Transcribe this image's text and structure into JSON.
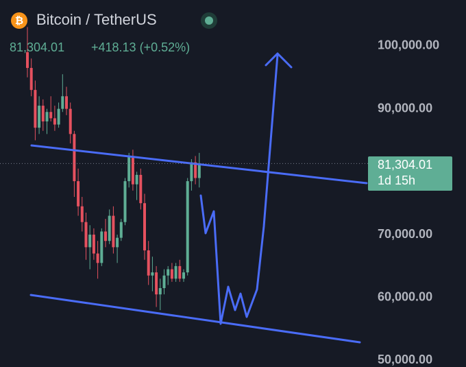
{
  "chart_data": {
    "type": "candlestick",
    "title": "Bitcoin / TetherUS",
    "price": "81,304.01",
    "change": "+418.13 (+0.52%)",
    "countdown": "1d 15h",
    "up_color": "#5fae95",
    "down_color": "#e5515f",
    "ylim": [
      48960,
      107300
    ],
    "yticks": [
      {
        "value": 50000,
        "label": "50,000.00"
      },
      {
        "value": 60000,
        "label": "60,000.00"
      },
      {
        "value": 70000,
        "label": "70,000.00"
      },
      {
        "value": 90000,
        "label": "90,000.00"
      },
      {
        "value": 100000,
        "label": "100,000.00"
      }
    ],
    "ohlc": [
      [
        99000,
        103000,
        95000,
        96500
      ],
      [
        96500,
        98000,
        92000,
        93000
      ],
      [
        93000,
        94500,
        85000,
        87000
      ],
      [
        87000,
        92000,
        86000,
        90500
      ],
      [
        90500,
        91500,
        86500,
        88000
      ],
      [
        88000,
        90000,
        86000,
        89500
      ],
      [
        89500,
        92000,
        88000,
        88500
      ],
      [
        88500,
        90500,
        86500,
        87500
      ],
      [
        87500,
        91000,
        87000,
        90000
      ],
      [
        90000,
        95500,
        89500,
        92000
      ],
      [
        92000,
        93500,
        89000,
        90000
      ],
      [
        90000,
        91000,
        84500,
        86000
      ],
      [
        86000,
        86500,
        76000,
        78500
      ],
      [
        78500,
        80500,
        73000,
        74500
      ],
      [
        74500,
        76000,
        70500,
        72000
      ],
      [
        72000,
        73500,
        66000,
        68000
      ],
      [
        68000,
        71500,
        64500,
        70000
      ],
      [
        70000,
        71000,
        66000,
        67000
      ],
      [
        67000,
        69000,
        63000,
        65500
      ],
      [
        65500,
        71000,
        65000,
        70500
      ],
      [
        70500,
        72500,
        68000,
        69000
      ],
      [
        69000,
        74000,
        68500,
        73000
      ],
      [
        73000,
        74500,
        67000,
        68000
      ],
      [
        68000,
        70000,
        65500,
        69500
      ],
      [
        69500,
        72500,
        69000,
        72000
      ],
      [
        72000,
        79000,
        71500,
        78500
      ],
      [
        78500,
        83000,
        77500,
        82500
      ],
      [
        82500,
        83500,
        77000,
        78000
      ],
      [
        78000,
        80000,
        75500,
        79500
      ],
      [
        79500,
        80500,
        74000,
        75000
      ],
      [
        75000,
        76500,
        66000,
        67500
      ],
      [
        67500,
        69000,
        62000,
        63500
      ],
      [
        63500,
        66500,
        61000,
        64000
      ],
      [
        64000,
        65000,
        58500,
        60500
      ],
      [
        60500,
        63000,
        58000,
        61500
      ],
      [
        61500,
        64500,
        60500,
        63500
      ],
      [
        63500,
        65000,
        62000,
        64500
      ],
      [
        64500,
        65500,
        62500,
        63000
      ],
      [
        63000,
        65500,
        62500,
        65000
      ],
      [
        65000,
        66000,
        62500,
        63000
      ],
      [
        63000,
        64500,
        62500,
        64000
      ],
      [
        64000,
        79000,
        63500,
        78500
      ],
      [
        78500,
        82000,
        77000,
        81500
      ],
      [
        81500,
        82500,
        78000,
        79000
      ],
      [
        79000,
        83000,
        77500,
        81304.01
      ]
    ]
  }
}
